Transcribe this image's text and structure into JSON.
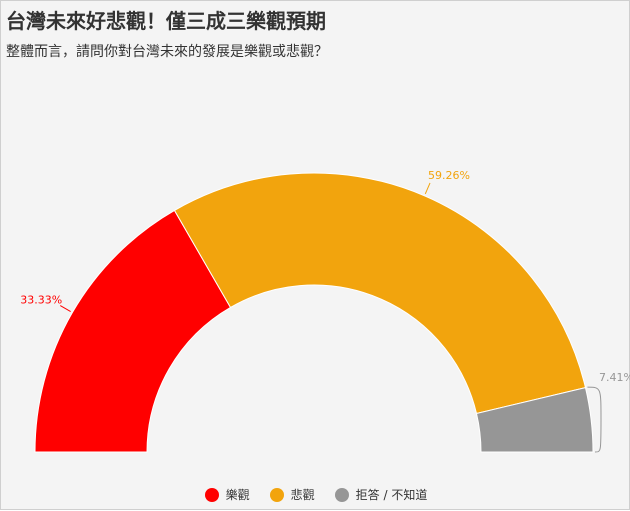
{
  "title": "台灣未來好悲觀！僅三成三樂觀預期",
  "subtitle": "整體而言，請問你對台灣未來的發展是樂觀或悲觀？",
  "colors": {
    "optimistic": "#ff0000",
    "pessimistic": "#f2a40d",
    "refuse": "#969696"
  },
  "chart_data": {
    "type": "pie",
    "variant": "semicircle-donut",
    "categories": [
      "樂觀",
      "悲觀",
      "拒答 / 不知道"
    ],
    "values": [
      33.33,
      59.26,
      7.41
    ],
    "data_labels": [
      "33.33%",
      "59.26%",
      "7.41%"
    ],
    "legend": "bottom-center"
  }
}
